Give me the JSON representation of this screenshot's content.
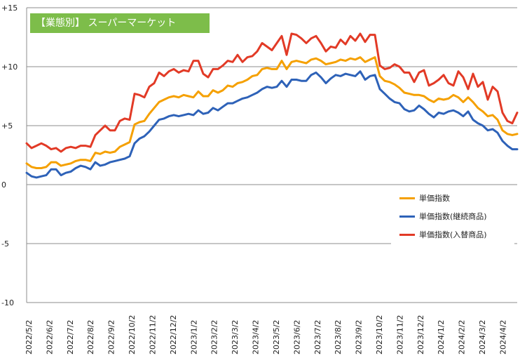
{
  "chart_data": {
    "type": "line",
    "title": "【業態別】 スーパーマーケット",
    "xlabel": "",
    "ylabel": "",
    "ylim": [
      -10,
      15
    ],
    "yticks": [
      {
        "value": 15,
        "label": "+15"
      },
      {
        "value": 10,
        "label": "+10"
      },
      {
        "value": 5,
        "label": "+5"
      },
      {
        "value": 0,
        "label": "0"
      },
      {
        "value": -5,
        "label": "-5"
      },
      {
        "value": -10,
        "label": "-10"
      }
    ],
    "x_tick_labels": [
      "2022/5/2",
      "2022/6/2",
      "2022/7/2",
      "2022/8/2",
      "2022/9/2",
      "2022/10/2",
      "2022/11/2",
      "2022/12/2",
      "2023/1/2",
      "2023/2/2",
      "2023/3/2",
      "2023/4/2",
      "2023/5/2",
      "2023/6/2",
      "2023/7/2",
      "2023/8/2",
      "2023/9/2",
      "2023/10/2",
      "2023/11/2",
      "2023/12/2",
      "2024/1/2",
      "2024/2/2",
      "2024/3/2",
      "2024/4/2"
    ],
    "grid": "horizontal",
    "legend_position": "bottom-right",
    "series": [
      {
        "name": "単価指数",
        "color": "#f5a000",
        "values": [
          1.8,
          1.5,
          1.4,
          1.4,
          1.5,
          1.9,
          1.9,
          1.6,
          1.7,
          1.8,
          2.0,
          2.1,
          2.1,
          2.0,
          2.7,
          2.6,
          2.8,
          2.7,
          2.8,
          3.2,
          3.4,
          3.6,
          5.1,
          5.3,
          5.4,
          6.0,
          6.5,
          7.0,
          7.2,
          7.4,
          7.5,
          7.4,
          7.6,
          7.5,
          7.4,
          7.9,
          7.5,
          7.5,
          8.0,
          7.8,
          8.0,
          8.4,
          8.3,
          8.6,
          8.7,
          8.9,
          9.2,
          9.3,
          9.8,
          9.9,
          9.8,
          9.8,
          10.5,
          9.8,
          10.4,
          10.5,
          10.4,
          10.3,
          10.6,
          10.7,
          10.5,
          10.2,
          10.3,
          10.4,
          10.6,
          10.5,
          10.7,
          10.6,
          10.8,
          10.4,
          10.6,
          10.8,
          9.2,
          8.8,
          8.7,
          8.5,
          8.2,
          7.8,
          7.7,
          7.6,
          7.6,
          7.5,
          7.2,
          7.0,
          7.3,
          7.2,
          7.3,
          7.6,
          7.4,
          7.0,
          7.4,
          7.0,
          6.5,
          6.2,
          5.8,
          5.9,
          5.5,
          4.6,
          4.3,
          4.2,
          4.3
        ]
      },
      {
        "name": "単価指数(継続商品)",
        "color": "#2e62b8",
        "values": [
          1.0,
          0.7,
          0.6,
          0.7,
          0.8,
          1.3,
          1.3,
          0.8,
          1.0,
          1.1,
          1.4,
          1.6,
          1.5,
          1.3,
          1.9,
          1.6,
          1.7,
          1.9,
          2.0,
          2.1,
          2.2,
          2.4,
          3.5,
          3.9,
          4.1,
          4.5,
          5.0,
          5.5,
          5.6,
          5.8,
          5.9,
          5.8,
          5.9,
          6.0,
          5.9,
          6.3,
          6.0,
          6.1,
          6.5,
          6.3,
          6.6,
          6.9,
          6.9,
          7.1,
          7.3,
          7.4,
          7.6,
          7.8,
          8.1,
          8.3,
          8.2,
          8.3,
          8.8,
          8.3,
          8.9,
          8.9,
          8.8,
          8.8,
          9.3,
          9.5,
          9.1,
          8.6,
          9.0,
          9.3,
          9.2,
          9.4,
          9.3,
          9.2,
          9.6,
          8.9,
          9.2,
          9.3,
          8.1,
          7.7,
          7.3,
          7.0,
          6.9,
          6.4,
          6.2,
          6.3,
          6.7,
          6.4,
          6.0,
          5.7,
          6.1,
          6.0,
          6.2,
          6.3,
          6.1,
          5.8,
          6.2,
          5.5,
          5.2,
          5.0,
          4.6,
          4.7,
          4.4,
          3.7,
          3.3,
          3.0,
          3.0
        ]
      },
      {
        "name": "単価指数(入替商品)",
        "color": "#e23a26",
        "values": [
          3.5,
          3.1,
          3.3,
          3.5,
          3.3,
          3.0,
          3.1,
          2.8,
          3.1,
          3.2,
          3.1,
          3.3,
          3.3,
          3.2,
          4.2,
          4.6,
          5.0,
          4.6,
          4.6,
          5.4,
          5.6,
          5.5,
          7.7,
          7.6,
          7.4,
          8.3,
          8.6,
          9.5,
          9.2,
          9.6,
          9.8,
          9.5,
          9.7,
          9.6,
          10.5,
          10.5,
          9.4,
          9.1,
          9.8,
          9.8,
          10.1,
          10.5,
          10.4,
          11.0,
          10.4,
          10.8,
          10.9,
          11.3,
          12.0,
          11.7,
          11.4,
          12.0,
          12.6,
          11.0,
          12.8,
          12.7,
          12.4,
          12.0,
          12.4,
          12.6,
          12.0,
          11.3,
          11.7,
          11.6,
          12.3,
          11.9,
          12.6,
          12.2,
          12.8,
          12.1,
          12.7,
          12.7,
          10.1,
          9.8,
          9.9,
          10.2,
          10.0,
          9.5,
          9.5,
          8.7,
          9.5,
          9.7,
          8.4,
          8.6,
          8.9,
          9.3,
          8.6,
          8.4,
          9.6,
          9.1,
          8.1,
          9.4,
          8.3,
          8.7,
          7.2,
          8.3,
          7.9,
          6.1,
          5.4,
          5.2,
          6.1
        ]
      }
    ]
  }
}
